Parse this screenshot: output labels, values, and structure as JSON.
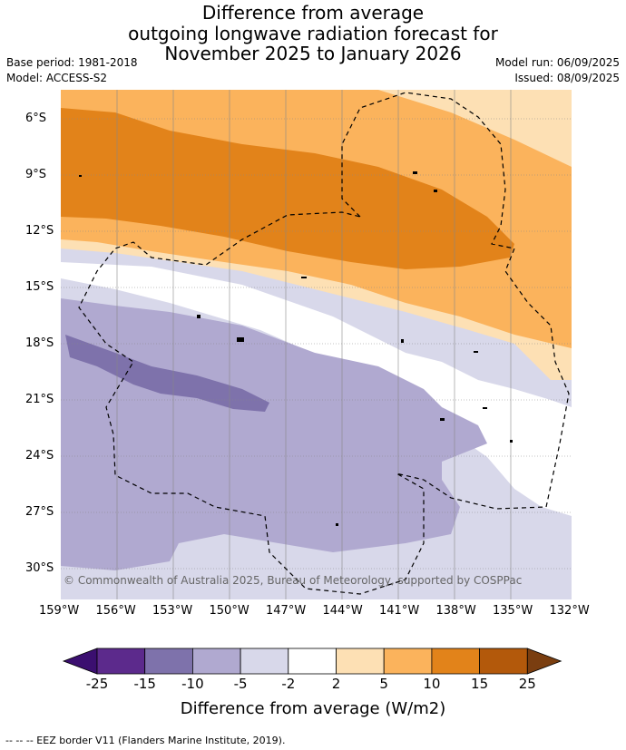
{
  "title": {
    "line1": "Difference from average",
    "line2": "outgoing longwave radiation forecast for",
    "line3": "November 2025 to January 2026"
  },
  "meta": {
    "base_period": "Base period: 1981-2018",
    "model": "Model: ACCESS-S2",
    "model_run": "Model run: 06/09/2025",
    "issued": "Issued: 08/09/2025"
  },
  "map": {
    "lat_labels": [
      "6°S",
      "9°S",
      "12°S",
      "15°S",
      "18°S",
      "21°S",
      "24°S",
      "27°S",
      "30°S"
    ],
    "lon_labels": [
      "159°W",
      "156°W",
      "153°W",
      "150°W",
      "147°W",
      "144°W",
      "141°W",
      "138°W",
      "135°W",
      "132°W"
    ],
    "copyright": "© Commonwealth of Australia 2025, Bureau of Meteorology, supported by COSPPac"
  },
  "colorbar": {
    "labels": [
      "-25",
      "-15",
      "-10",
      "-5",
      "-2",
      "2",
      "5",
      "10",
      "15",
      "25"
    ],
    "colors": [
      "#3b0f70",
      "#5c2a8c",
      "#7e72ab",
      "#b0a9d0",
      "#d8d8ea",
      "#ffffff",
      "#fde0b4",
      "#fbb35c",
      "#e2831a",
      "#b3590b",
      "#7a3e10"
    ],
    "title": "Difference from average (W/m2)"
  },
  "legend": {
    "eez": "-- -- -- EEZ border V11 (Flanders Marine Institute, 2019)."
  }
}
